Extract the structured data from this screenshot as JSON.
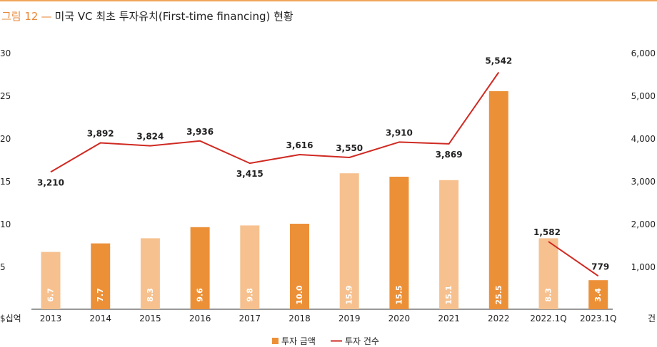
{
  "title": {
    "figure_label": "그림 12",
    "separator": "—",
    "text": "미국 VC 최초 투자유치(First-time financing) 현황"
  },
  "chart_data": {
    "type": "bar+line",
    "categories": [
      "2013",
      "2014",
      "2015",
      "2016",
      "2017",
      "2018",
      "2019",
      "2020",
      "2021",
      "2022",
      "2022.1Q",
      "2023.1Q"
    ],
    "series": [
      {
        "name": "투자 금액",
        "type": "bar",
        "axis": "left",
        "values": [
          6.7,
          7.7,
          8.3,
          9.6,
          9.8,
          10.0,
          15.9,
          15.5,
          15.1,
          25.5,
          8.3,
          3.4
        ],
        "value_labels": [
          "6.7",
          "7.7",
          "8.3",
          "9.6",
          "9.8",
          "10.0",
          "15.9",
          "15.5",
          "15.1",
          "25.5",
          "8.3",
          "3.4"
        ],
        "colors": [
          "#f6c18f",
          "#ec9038",
          "#f6c18f",
          "#ec9038",
          "#f6c18f",
          "#ec9038",
          "#f6c18f",
          "#ec9038",
          "#f6c18f",
          "#ec9038",
          "#f6c18f",
          "#ec9038"
        ]
      },
      {
        "name": "투자 건수",
        "type": "line",
        "axis": "right",
        "color": "#cf2a22",
        "segments": [
          [
            0,
            9
          ],
          [
            10,
            11
          ]
        ],
        "values": [
          3210,
          3892,
          3824,
          3936,
          3415,
          3616,
          3550,
          3910,
          3869,
          5542,
          1582,
          779
        ],
        "value_labels": [
          "3,210",
          "3,892",
          "3,824",
          "3,936",
          "3,415",
          "3,616",
          "3,550",
          "3,910",
          "3,869",
          "5,542",
          "1,582",
          "779"
        ]
      }
    ],
    "left_axis": {
      "unit": "$십억",
      "ylim": [
        0,
        30
      ],
      "ticks": [
        "5",
        "10",
        "15",
        "20",
        "25",
        "30"
      ],
      "tick_values": [
        5,
        10,
        15,
        20,
        25,
        30
      ]
    },
    "right_axis": {
      "unit": "건",
      "ylim": [
        0,
        6000
      ],
      "ticks": [
        "1,000",
        "2,000",
        "3,000",
        "4,000",
        "5,000",
        "6,000"
      ],
      "tick_values": [
        1000,
        2000,
        3000,
        4000,
        5000,
        6000
      ]
    },
    "grid": false,
    "legend_position": "bottom-center",
    "colors": {
      "bar_light": "#f6c18f",
      "bar_dark": "#ec9038",
      "line": "#cf2a22",
      "legend_bar": "#ec9038"
    }
  }
}
